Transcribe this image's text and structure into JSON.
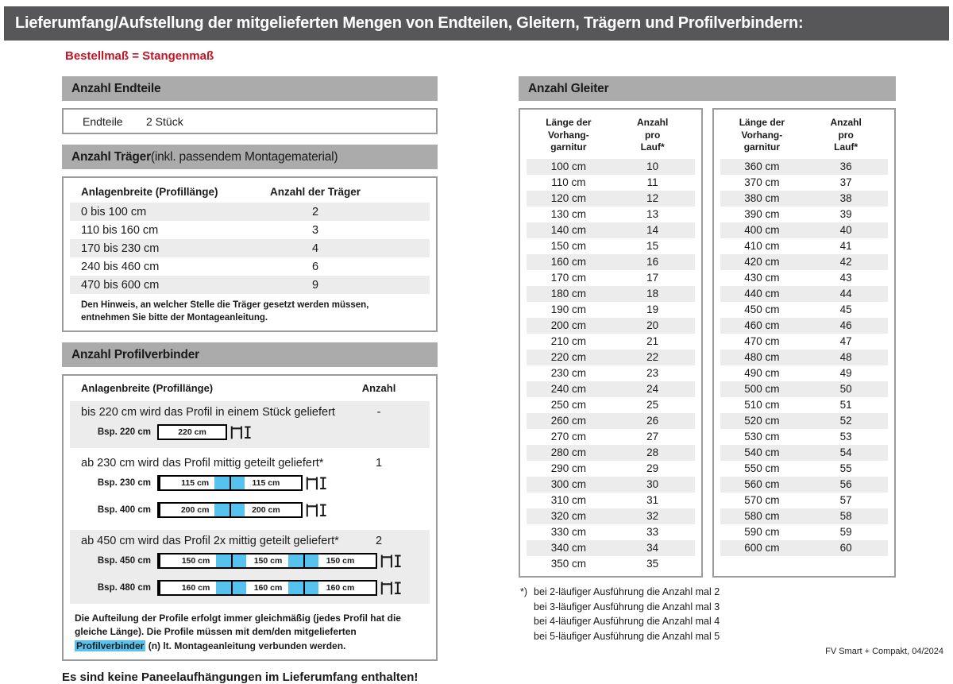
{
  "header": {
    "title": "Lieferumfang/Aufstellung der mitgelieferten Mengen von Endteilen, Gleitern, Trägern und Profilverbindern:",
    "subtitle": "Bestellmaß = Stangenmaß"
  },
  "colors": {
    "top_bar": "#57575a",
    "section_header": "#ababab",
    "row_stripe": "#ececec",
    "connector_blue": "#55c3ee",
    "accent_red": "#c41425"
  },
  "endteile": {
    "section_title": "Anzahl Endteile",
    "label": "Endteile",
    "value": "2 Stück"
  },
  "traeger": {
    "title_bold": "Anzahl Träger",
    "title_rest": " (inkl. passendem Montagematerial)",
    "col1": "Anlagenbreite (Profillänge)",
    "col2": "Anzahl der Träger",
    "rows": [
      [
        "0 bis 100 cm",
        "2"
      ],
      [
        "110 bis 160 cm",
        "3"
      ],
      [
        "170 bis 230 cm",
        "4"
      ],
      [
        "240 bis 460 cm",
        "6"
      ],
      [
        "470 bis 600 cm",
        "9"
      ]
    ],
    "note": "Den Hinweis, an welcher Stelle die Träger gesetzt werden müssen, entnehmen Sie bitte der Montageanleitung."
  },
  "profilverbinder": {
    "section_title": "Anzahl Profilverbinder",
    "col1": "Anlagenbreite (Profillänge)",
    "col2": "Anzahl",
    "groups": [
      {
        "text": "bis 220 cm wird das Profil in einem Stück geliefert",
        "anzahl": "-",
        "diagrams": [
          {
            "label": "Bsp. 220 cm",
            "segments": [
              "220 cm"
            ]
          }
        ]
      },
      {
        "text": "ab 230 cm wird das Profil mittig geteilt geliefert*",
        "anzahl": "1",
        "diagrams": [
          {
            "label": "Bsp. 230 cm",
            "segments": [
              "115 cm",
              "115 cm"
            ]
          },
          {
            "label": "Bsp. 400 cm",
            "segments": [
              "200 cm",
              "200 cm"
            ]
          }
        ]
      },
      {
        "text": "ab 450 cm wird das Profil 2x mittig geteilt geliefert*",
        "anzahl": "2",
        "diagrams": [
          {
            "label": "Bsp. 450 cm",
            "segments": [
              "150 cm",
              "150 cm",
              "150 cm"
            ]
          },
          {
            "label": "Bsp. 480 cm",
            "segments": [
              "160 cm",
              "160 cm",
              "160 cm"
            ]
          }
        ]
      }
    ],
    "note_part1": "Die Aufteilung der Profile erfolgt immer gleichmäßig (jedes Profil hat die gleiche Länge). Die Profile müssen mit dem/den mitgelieferten ",
    "note_highlight": "Profilverbinder",
    "note_part2": " (n) lt. Montageanleitung verbunden werden."
  },
  "no_panel_note": "Es sind keine Paneelaufhängungen im Lieferumfang enthalten!",
  "gleiter": {
    "section_title": "Anzahl Gleiter",
    "col_length_lines": [
      "Länge der",
      "Vorhang-",
      "garnitur"
    ],
    "col_count_lines": [
      "Anzahl",
      "pro",
      "Lauf*"
    ],
    "table1_rows": [
      [
        "100 cm",
        "10"
      ],
      [
        "110 cm",
        "11"
      ],
      [
        "120 cm",
        "12"
      ],
      [
        "130 cm",
        "13"
      ],
      [
        "140 cm",
        "14"
      ],
      [
        "150 cm",
        "15"
      ],
      [
        "160 cm",
        "16"
      ],
      [
        "170 cm",
        "17"
      ],
      [
        "180 cm",
        "18"
      ],
      [
        "190 cm",
        "19"
      ],
      [
        "200 cm",
        "20"
      ],
      [
        "210 cm",
        "21"
      ],
      [
        "220 cm",
        "22"
      ],
      [
        "230 cm",
        "23"
      ],
      [
        "240 cm",
        "24"
      ],
      [
        "250 cm",
        "25"
      ],
      [
        "260 cm",
        "26"
      ],
      [
        "270 cm",
        "27"
      ],
      [
        "280 cm",
        "28"
      ],
      [
        "290 cm",
        "29"
      ],
      [
        "300 cm",
        "30"
      ],
      [
        "310 cm",
        "31"
      ],
      [
        "320 cm",
        "32"
      ],
      [
        "330 cm",
        "33"
      ],
      [
        "340 cm",
        "34"
      ],
      [
        "350 cm",
        "35"
      ]
    ],
    "table2_rows": [
      [
        "360 cm",
        "36"
      ],
      [
        "370 cm",
        "37"
      ],
      [
        "380 cm",
        "38"
      ],
      [
        "390 cm",
        "39"
      ],
      [
        "400 cm",
        "40"
      ],
      [
        "410 cm",
        "41"
      ],
      [
        "420 cm",
        "42"
      ],
      [
        "430 cm",
        "43"
      ],
      [
        "440 cm",
        "44"
      ],
      [
        "450 cm",
        "45"
      ],
      [
        "460 cm",
        "46"
      ],
      [
        "470 cm",
        "47"
      ],
      [
        "480 cm",
        "48"
      ],
      [
        "490 cm",
        "49"
      ],
      [
        "500 cm",
        "50"
      ],
      [
        "510 cm",
        "51"
      ],
      [
        "520 cm",
        "52"
      ],
      [
        "530 cm",
        "53"
      ],
      [
        "540 cm",
        "54"
      ],
      [
        "550 cm",
        "55"
      ],
      [
        "560 cm",
        "56"
      ],
      [
        "570 cm",
        "57"
      ],
      [
        "580 cm",
        "58"
      ],
      [
        "590 cm",
        "59"
      ],
      [
        "600 cm",
        "60"
      ]
    ],
    "footnote_marker": "*)",
    "footnotes": [
      "bei 2-läufiger Ausführung die Anzahl mal 2",
      "bei 3-läufiger Ausführung die Anzahl mal 3",
      "bei 4-läufiger Ausführung die Anzahl mal 4",
      "bei 5-läufiger Ausführung die Anzahl mal 5"
    ]
  },
  "footer": "FV Smart + Compakt, 04/2024"
}
